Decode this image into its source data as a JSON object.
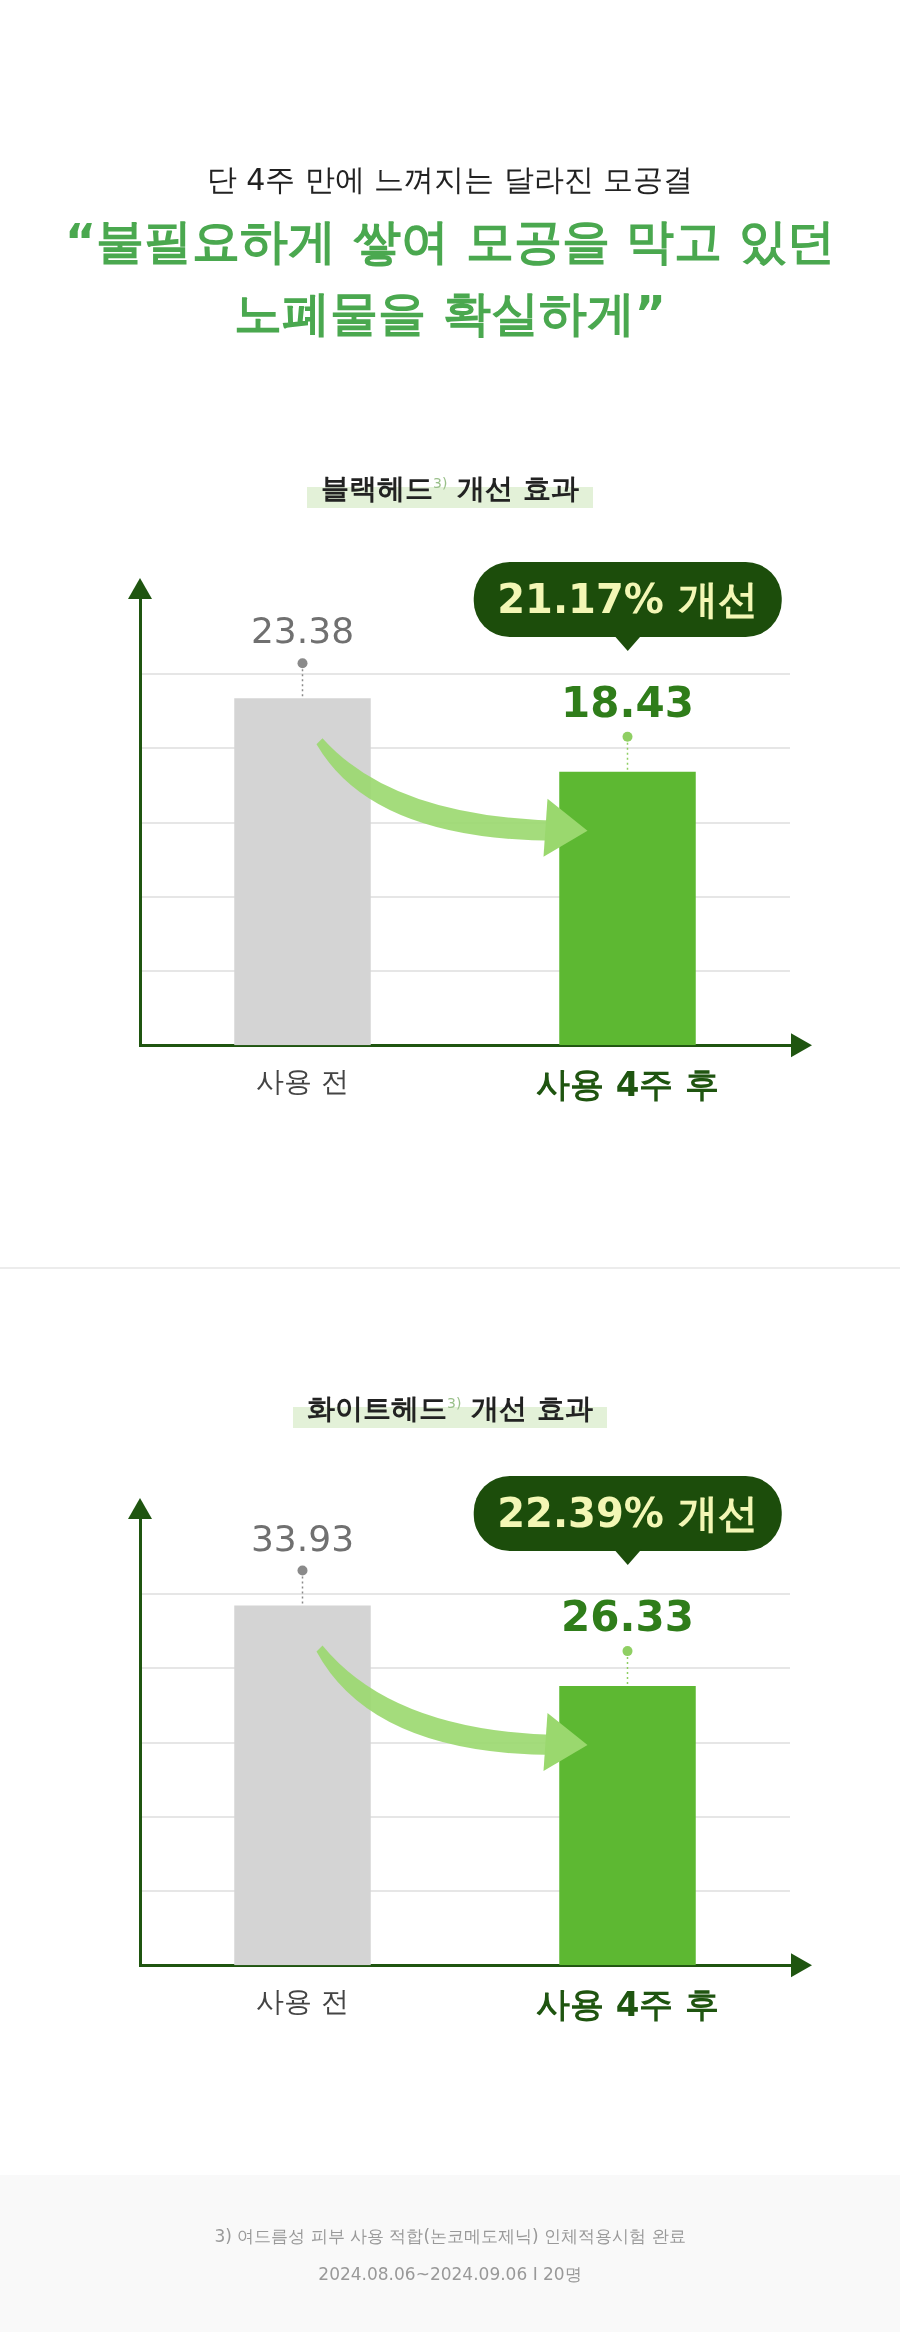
{
  "chart_data": [
    {
      "type": "bar",
      "title": "블랙헤드$^{3)}$ 개선 효과",
      "annotations": [
        "21.17% 개선",
        "단 4주 만에 느껴지는 달라진 모공결",
        "“불필요하게 쌓여 모공을 막고 있던",
        "노폐물을 확실하게”"
      ],
      "categories": [
        "사용 전",
        "사용 4주 후"
      ],
      "values": [
        23.38,
        18.43
      ],
      "colors": [
        "#d4d4d4",
        "#5db832"
      ],
      "ylim": [
        0,
        30
      ],
      "yticks": [
        {
          "value": 5,
          "label": null
        },
        {
          "value": 10,
          "label": null
        },
        {
          "value": 15,
          "label": null
        },
        {
          "value": 20,
          "label": null
        },
        {
          "value": 25,
          "label": null
        }
      ],
      "grid": "y",
      "tick_labels": "x",
      "data_labels": true
    },
    {
      "type": "bar",
      "title": "화이트헤드$^{3)}$ 개선 효과",
      "annotations": [
        "22.39% 개선",
        "3) 여드름성 피부 사용 적합(논코메도제닉) 인체적용시험 완료",
        "2024.08.06~2024.09.06 I 20명"
      ],
      "categories": [
        "사용 전",
        "사용 4주 후"
      ],
      "values": [
        33.93,
        26.33
      ],
      "colors": [
        "#d4d4d4",
        "#5db832"
      ],
      "ylim": [
        0,
        42
      ],
      "yticks": [
        {
          "value": 7,
          "label": null
        },
        {
          "value": 14,
          "label": null
        },
        {
          "value": 21,
          "label": null
        },
        {
          "value": 28,
          "label": null
        },
        {
          "value": 35,
          "label": null
        }
      ],
      "grid": "y",
      "tick_labels": "x",
      "data_labels": true
    }
  ]
}
